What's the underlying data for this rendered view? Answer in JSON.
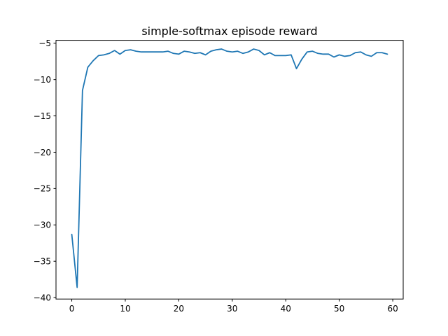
{
  "chart_data": {
    "type": "line",
    "title": "simple-softmax episode reward",
    "xlabel": "",
    "ylabel": "",
    "xlim": [
      -2.95,
      61.95
    ],
    "ylim": [
      -40.2,
      -4.6
    ],
    "xticks": [
      0,
      10,
      20,
      30,
      40,
      50,
      60
    ],
    "yticks": [
      -40,
      -35,
      -30,
      -25,
      -20,
      -15,
      -10,
      -5
    ],
    "xtick_labels": [
      "0",
      "10",
      "20",
      "30",
      "40",
      "50",
      "60"
    ],
    "ytick_labels": [
      "−40",
      "−35",
      "−30",
      "−25",
      "−20",
      "−15",
      "−10",
      "−5"
    ],
    "grid": false,
    "series": [
      {
        "color": "#1f77b4",
        "x": [
          0,
          1,
          2,
          3,
          4,
          5,
          6,
          7,
          8,
          9,
          10,
          11,
          12,
          13,
          14,
          15,
          16,
          17,
          18,
          19,
          20,
          21,
          22,
          23,
          24,
          25,
          26,
          27,
          28,
          29,
          30,
          31,
          32,
          33,
          34,
          35,
          36,
          37,
          38,
          39,
          40,
          41,
          42,
          43,
          44,
          45,
          46,
          47,
          48,
          49,
          50,
          51,
          52,
          53,
          54,
          55,
          56,
          57,
          58,
          59
        ],
        "y": [
          -31.3,
          -38.6,
          -11.5,
          -8.3,
          -7.4,
          -6.7,
          -6.6,
          -6.4,
          -6.0,
          -6.5,
          -6.0,
          -5.9,
          -6.1,
          -6.2,
          -6.2,
          -6.2,
          -6.2,
          -6.2,
          -6.1,
          -6.4,
          -6.5,
          -6.1,
          -6.2,
          -6.4,
          -6.3,
          -6.6,
          -6.1,
          -5.9,
          -5.8,
          -6.1,
          -6.2,
          -6.1,
          -6.4,
          -6.2,
          -5.8,
          -6.0,
          -6.6,
          -6.3,
          -6.7,
          -6.7,
          -6.7,
          -6.6,
          -8.5,
          -7.2,
          -6.2,
          -6.1,
          -6.4,
          -6.5,
          -6.5,
          -6.9,
          -6.6,
          -6.8,
          -6.7,
          -6.3,
          -6.2,
          -6.6,
          -6.8,
          -6.3,
          -6.3,
          -6.5
        ]
      }
    ]
  }
}
